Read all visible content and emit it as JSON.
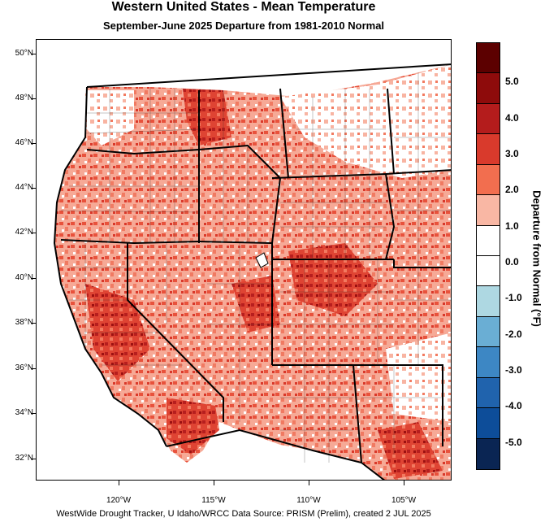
{
  "header": {
    "title": "Western United States - Mean Temperature",
    "subtitle": "September-June 2025  Departure from 1981-2010 Normal"
  },
  "axes": {
    "lat_labels": [
      "50°N",
      "48°N",
      "46°N",
      "44°N",
      "42°N",
      "40°N",
      "38°N",
      "36°N",
      "34°N",
      "32°N"
    ],
    "lon_labels": [
      "120°W",
      "115°W",
      "110°W",
      "105°W"
    ]
  },
  "colorbar": {
    "title": "Departure from Normal (°F)",
    "labels": [
      "5.0",
      "4.0",
      "3.0",
      "2.0",
      "1.0",
      "0.0",
      "-1.0",
      "-2.0",
      "-3.0",
      "-4.0",
      "-5.0"
    ],
    "colors": [
      "#5c0000",
      "#8e0b0b",
      "#b41c1c",
      "#d93a2c",
      "#f26e4f",
      "#f9b7a4",
      "#ffffff",
      "#ffffff",
      "#aed8e2",
      "#6aaed4",
      "#3d87c4",
      "#2063ad",
      "#0d4d99",
      "#0a2553"
    ]
  },
  "footer": {
    "credit": "WestWide Drought Tracker, U Idaho/WRCC Data Source: PRISM (Prelim), created  2 JUL 2025"
  }
}
